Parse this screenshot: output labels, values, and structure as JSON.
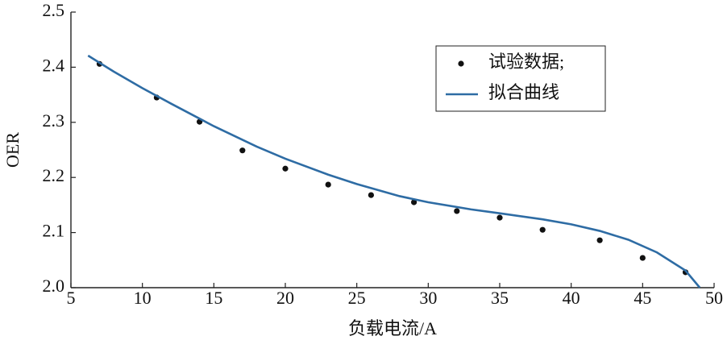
{
  "chart_data": {
    "type": "scatter",
    "x_label": "负载电流/A",
    "y_label": "OER",
    "xlim": [
      5,
      50
    ],
    "xticks": [
      5,
      10,
      15,
      20,
      25,
      30,
      35,
      40,
      45,
      50
    ],
    "ylim": [
      2.0,
      2.5
    ],
    "yticks": [
      {
        "value": 2,
        "label": "2.0"
      },
      2.1,
      2.2,
      2.3,
      2.4,
      2.5
    ],
    "legend": "upper right",
    "series": [
      {
        "name": "试验数据;",
        "color": "#111111",
        "style": "markers",
        "x": [
          7,
          11,
          14,
          17,
          20,
          23,
          26,
          29,
          32,
          35,
          38,
          42,
          45,
          48
        ],
        "values": [
          2.406,
          2.345,
          2.301,
          2.249,
          2.216,
          2.187,
          2.168,
          2.155,
          2.139,
          2.127,
          2.105,
          2.086,
          2.054,
          2.028
        ]
      },
      {
        "name": "拟合曲线",
        "color": "#2e6ca4",
        "style": "line",
        "x": [
          6.2,
          8,
          10,
          12,
          15,
          18,
          20,
          23,
          25,
          28,
          30,
          33,
          35,
          38,
          40,
          42,
          44,
          46,
          48,
          49
        ],
        "values": [
          2.421,
          2.392,
          2.362,
          2.334,
          2.293,
          2.256,
          2.234,
          2.205,
          2.188,
          2.166,
          2.155,
          2.142,
          2.135,
          2.124,
          2.115,
          2.103,
          2.087,
          2.064,
          2.031,
          2.0
        ]
      }
    ]
  }
}
